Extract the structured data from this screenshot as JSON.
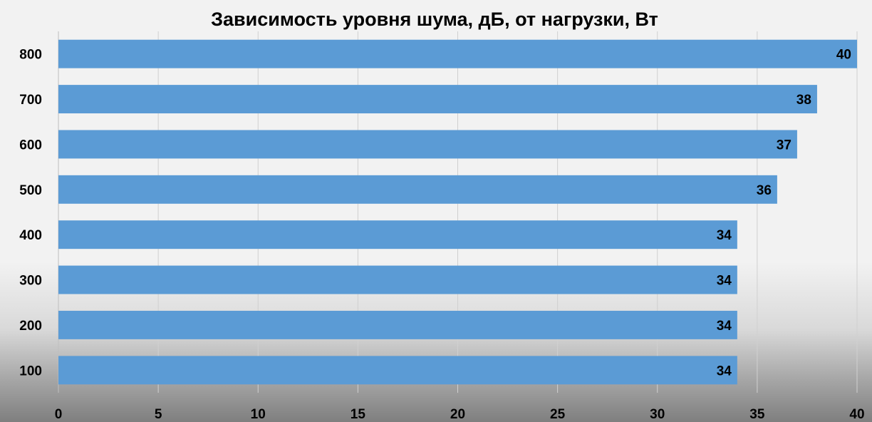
{
  "chart_data": {
    "type": "bar",
    "orientation": "horizontal",
    "title": "Зависимость уровня шума, дБ, от нагрузки, Вт",
    "xlabel": "",
    "ylabel": "",
    "categories": [
      "800",
      "700",
      "600",
      "500",
      "400",
      "300",
      "200",
      "100"
    ],
    "values": [
      40,
      38,
      37,
      36,
      34,
      34,
      34,
      34
    ],
    "xlim": [
      0,
      40
    ],
    "x_ticks": [
      "0",
      "5",
      "10",
      "15",
      "20",
      "25",
      "30",
      "35",
      "40"
    ],
    "data_labels": true,
    "grid": "vertical",
    "legend": "none",
    "colors": {
      "bar": "#5b9bd5",
      "gridline": "#d0d0d0",
      "text": "#000000"
    }
  }
}
